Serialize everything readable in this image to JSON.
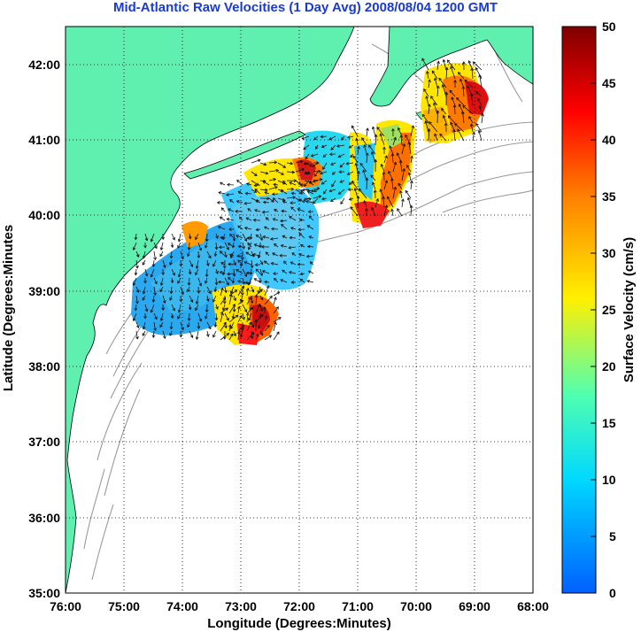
{
  "title": "Mid-Atlantic Raw Velocities (1 Day Avg) 2008/08/04 1200 GMT",
  "map": {
    "xlabel": "Longitude (Degrees:Minutes)",
    "ylabel": "Latitude (Degrees:Minutes",
    "x_ticks": [
      "76:00",
      "75:00",
      "74:00",
      "73:00",
      "72:00",
      "71:00",
      "70:00",
      "69:00",
      "68:00"
    ],
    "y_ticks": [
      "42:00",
      "41:00",
      "40:00",
      "39:00",
      "38:00",
      "37:00",
      "36:00",
      "35:00"
    ],
    "lon_range_west": [
      76,
      68
    ],
    "lat_range": [
      35,
      42.5
    ],
    "land_color": "#5ff0b0",
    "bathymetry_color": "#9a9a9a",
    "grid": true
  },
  "colorbar": {
    "label": "Surface Velocity (cm/s)",
    "ticks": [
      "50",
      "45",
      "40",
      "35",
      "30",
      "25",
      "20",
      "15",
      "10",
      "5",
      "0"
    ],
    "range": [
      0,
      50
    ],
    "colors": [
      "#0060ff",
      "#00d8ff",
      "#50ffb0",
      "#fff000",
      "#ff8000",
      "#ff0000",
      "#800000"
    ]
  }
}
